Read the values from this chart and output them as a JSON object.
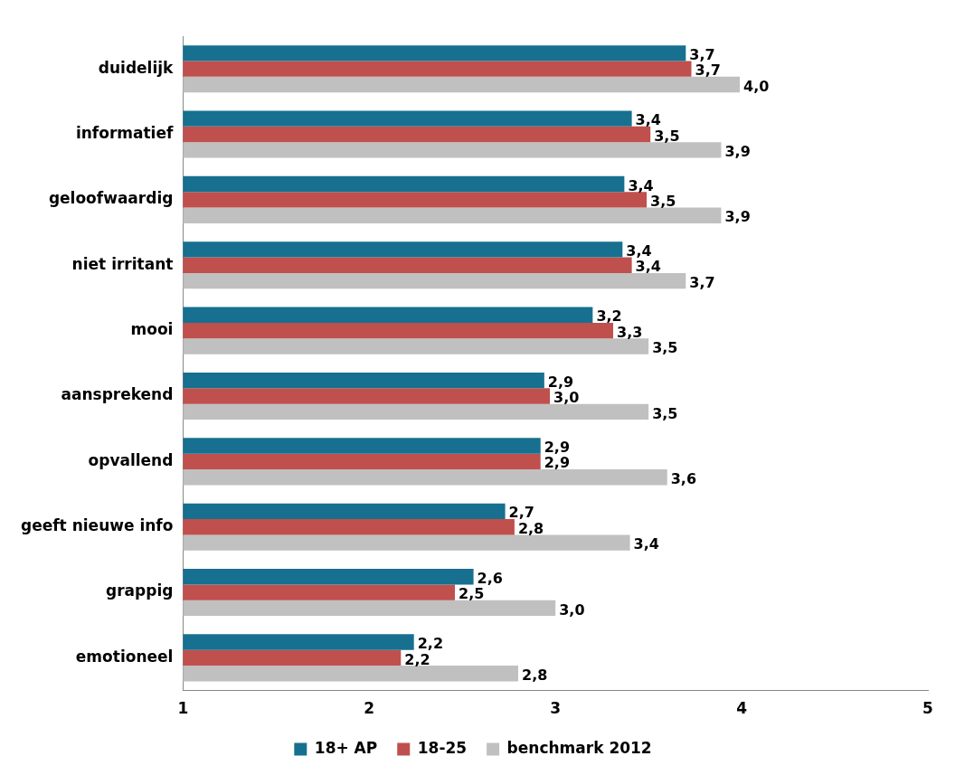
{
  "chart_data": {
    "type": "bar",
    "orientation": "horizontal",
    "categories": [
      "duidelijk",
      "informatief",
      "geloofwaardig",
      "niet irritant",
      "mooi",
      "aansprekend",
      "opvallend",
      "geeft nieuwe info",
      "grappig",
      "emotioneel"
    ],
    "series": [
      {
        "name": "18+ AP",
        "color": "#17708f",
        "values": [
          3.7,
          3.41,
          3.37,
          3.36,
          3.2,
          2.94,
          2.92,
          2.73,
          2.56,
          2.24
        ],
        "value_labels": [
          "3,7",
          "3,4",
          "3,4",
          "3,4",
          "3,2",
          "2,9",
          "2,9",
          "2,7",
          "2,6",
          "2,2"
        ]
      },
      {
        "name": "18-25",
        "color": "#c0504d",
        "values": [
          3.73,
          3.51,
          3.49,
          3.41,
          3.31,
          2.97,
          2.92,
          2.78,
          2.46,
          2.17
        ],
        "value_labels": [
          "3,7",
          "3,5",
          "3,5",
          "3,4",
          "3,3",
          "3,0",
          "2,9",
          "2,8",
          "2,5",
          "2,2"
        ]
      },
      {
        "name": "benchmark 2012",
        "color": "#c0c0c0",
        "values": [
          3.99,
          3.89,
          3.89,
          3.7,
          3.5,
          3.5,
          3.6,
          3.4,
          3.0,
          2.8
        ],
        "value_labels": [
          "4,0",
          "3,9",
          "3,9",
          "3,7",
          "3,5",
          "3,5",
          "3,6",
          "3,4",
          "3,0",
          "2,8"
        ]
      }
    ],
    "xlim": [
      1,
      5
    ],
    "xticks": [
      1,
      2,
      3,
      4,
      5
    ],
    "grid": false,
    "legend": "bottom"
  }
}
